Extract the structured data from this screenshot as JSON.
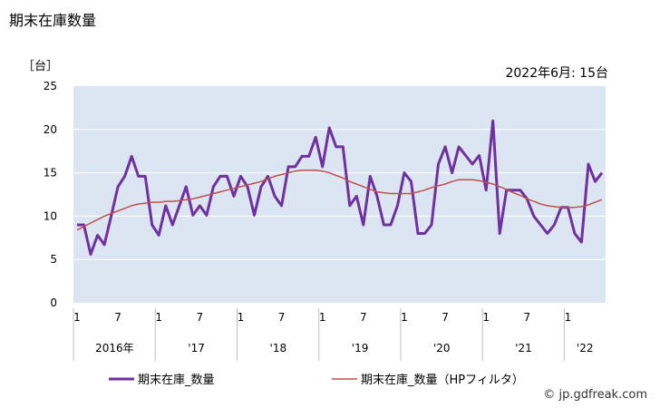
{
  "title": "期末在庫数量",
  "unit_label": "［台］",
  "latest_note": "2022年6月: 15台",
  "credit": "© jp.gdfreak.com",
  "colors": {
    "plot_bg": "#dce6f2",
    "series_main": "#7030a0",
    "series_hp": "#c0504d",
    "grid": "#ffffff"
  },
  "chart_data": {
    "type": "line",
    "ylim": [
      0,
      25
    ],
    "yticks": [
      "0",
      "5",
      "10",
      "15",
      "20",
      "25"
    ],
    "x_month_ticks": [
      {
        "index": 0,
        "label": "1"
      },
      {
        "index": 6,
        "label": "7"
      },
      {
        "index": 12,
        "label": "1"
      },
      {
        "index": 18,
        "label": "7"
      },
      {
        "index": 24,
        "label": "1"
      },
      {
        "index": 30,
        "label": "7"
      },
      {
        "index": 36,
        "label": "1"
      },
      {
        "index": 42,
        "label": "7"
      },
      {
        "index": 48,
        "label": "1"
      },
      {
        "index": 54,
        "label": "7"
      },
      {
        "index": 60,
        "label": "1"
      },
      {
        "index": 66,
        "label": "7"
      },
      {
        "index": 72,
        "label": "1"
      }
    ],
    "x_year_labels": [
      {
        "from": 0,
        "to": 11,
        "label": "2016年"
      },
      {
        "from": 12,
        "to": 23,
        "label": "'17"
      },
      {
        "from": 24,
        "to": 35,
        "label": "'18"
      },
      {
        "from": 36,
        "to": 47,
        "label": "'19"
      },
      {
        "from": 48,
        "to": 59,
        "label": "'20"
      },
      {
        "from": 60,
        "to": 71,
        "label": "'21"
      },
      {
        "from": 72,
        "to": 77,
        "label": "'22"
      }
    ],
    "series": [
      {
        "name": "期末在庫_数量",
        "values": [
          9,
          9,
          5.6,
          7.8,
          6.7,
          10,
          13.4,
          14.6,
          16.9,
          14.6,
          14.6,
          9,
          7.8,
          11.2,
          9,
          11.2,
          13.4,
          10.1,
          11.2,
          10.1,
          13.4,
          14.6,
          14.6,
          12.3,
          14.6,
          13.4,
          10.1,
          13.4,
          14.6,
          12.3,
          11.2,
          15.7,
          15.7,
          16.9,
          16.9,
          19.1,
          15.7,
          20.2,
          18,
          18,
          11.2,
          12.3,
          9,
          14.6,
          12.3,
          9,
          9,
          11.2,
          15,
          14,
          8,
          8,
          9,
          16,
          18,
          15,
          18,
          17,
          16,
          17,
          13,
          21,
          8,
          13,
          13,
          13,
          12,
          10,
          9,
          8,
          9,
          11,
          11,
          8,
          7,
          16,
          14,
          15
        ]
      },
      {
        "name": "期末在庫_数量（HPフィルタ）",
        "values": [
          8.4,
          8.8,
          9.2,
          9.6,
          10,
          10.3,
          10.6,
          10.9,
          11.2,
          11.4,
          11.5,
          11.6,
          11.6,
          11.7,
          11.7,
          11.8,
          11.9,
          12,
          12.2,
          12.4,
          12.6,
          12.8,
          13,
          13.2,
          13.4,
          13.6,
          13.8,
          14,
          14.3,
          14.6,
          14.8,
          15,
          15.2,
          15.3,
          15.3,
          15.3,
          15.2,
          15,
          14.7,
          14.4,
          14,
          13.7,
          13.4,
          13.1,
          12.8,
          12.7,
          12.6,
          12.6,
          12.6,
          12.6,
          12.8,
          13,
          13.3,
          13.5,
          13.7,
          14,
          14.2,
          14.2,
          14.2,
          14.1,
          13.9,
          13.7,
          13.4,
          13.1,
          12.7,
          12.4,
          12,
          11.7,
          11.4,
          11.2,
          11.1,
          11,
          11,
          11,
          11.1,
          11.3,
          11.6,
          11.9
        ]
      }
    ]
  }
}
